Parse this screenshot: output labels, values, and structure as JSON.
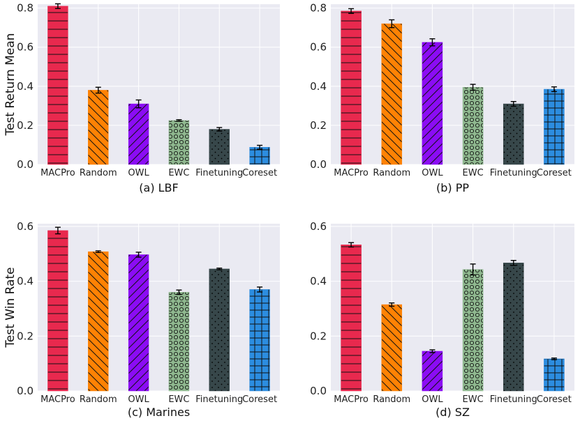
{
  "colors": {
    "panel_bg": "#eaeaf2",
    "grid": "#ffffff",
    "MACPro": "#e8294e",
    "Random": "#fe8204",
    "OWL": "#8b0cf4",
    "EWC": "#8fb88f",
    "Finetuning": "#37474a",
    "Coreset": "#2c8de0"
  },
  "patterns": {
    "MACPro": "horizontal-lines",
    "Random": "backslash-hatch",
    "OWL": "slash-hatch",
    "EWC": "circles",
    "Finetuning": "dots",
    "Coreset": "grid"
  },
  "chart_data": [
    {
      "type": "bar",
      "title": "(a) LBF",
      "ylabel": "Test Return Mean",
      "ylim": [
        0,
        0.82
      ],
      "yticks": [
        "0.0",
        "0.2",
        "0.4",
        "0.6",
        "0.8"
      ],
      "categories": [
        "MACPro",
        "Random",
        "OWL",
        "EWC",
        "Finetuning",
        "Coreset"
      ],
      "values": [
        0.81,
        0.38,
        0.31,
        0.225,
        0.18,
        0.088
      ],
      "errors": [
        0.012,
        0.015,
        0.02,
        0.004,
        0.009,
        0.01
      ]
    },
    {
      "type": "bar",
      "title": "(b) PP",
      "ylabel": "",
      "ylim": [
        0,
        0.82
      ],
      "yticks": [
        "0.0",
        "0.2",
        "0.4",
        "0.6",
        "0.8"
      ],
      "categories": [
        "MACPro",
        "Random",
        "OWL",
        "EWC",
        "Finetuning",
        "Coreset"
      ],
      "values": [
        0.785,
        0.72,
        0.625,
        0.395,
        0.31,
        0.385
      ],
      "errors": [
        0.012,
        0.02,
        0.018,
        0.015,
        0.012,
        0.012
      ]
    },
    {
      "type": "bar",
      "title": "(c) Marines",
      "ylabel": "Test Win Rate",
      "ylim": [
        0,
        0.61
      ],
      "yticks": [
        "0.0",
        "0.2",
        "0.4",
        "0.6"
      ],
      "categories": [
        "MACPro",
        "Random",
        "OWL",
        "EWC",
        "Finetuning",
        "Coreset"
      ],
      "values": [
        0.585,
        0.508,
        0.497,
        0.36,
        0.445,
        0.37
      ],
      "errors": [
        0.012,
        0.003,
        0.009,
        0.008,
        0.003,
        0.009
      ]
    },
    {
      "type": "bar",
      "title": "(d) SZ",
      "ylabel": "",
      "ylim": [
        0,
        0.61
      ],
      "yticks": [
        "0.0",
        "0.2",
        "0.4",
        "0.6"
      ],
      "categories": [
        "MACPro",
        "Random",
        "OWL",
        "EWC",
        "Finetuning",
        "Coreset"
      ],
      "values": [
        0.533,
        0.315,
        0.145,
        0.443,
        0.467,
        0.117
      ],
      "errors": [
        0.008,
        0.006,
        0.005,
        0.02,
        0.009,
        0.003
      ]
    }
  ]
}
